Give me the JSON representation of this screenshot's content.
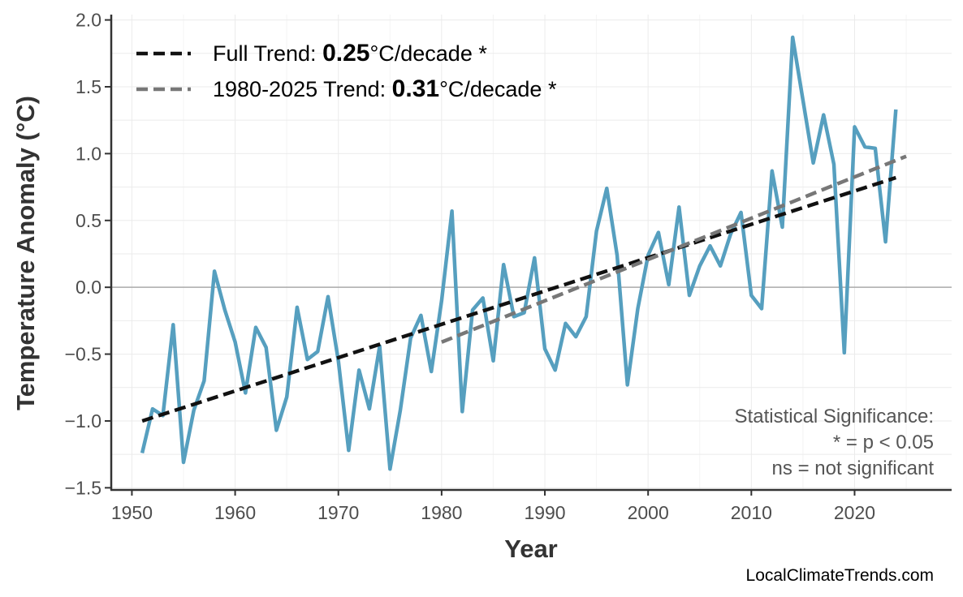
{
  "chart_data": {
    "type": "line",
    "xlabel": "Year",
    "ylabel": "Temperature Anomaly (°C)",
    "xlim": [
      1948,
      2029.4
    ],
    "ylim": [
      -1.51,
      2.04
    ],
    "xticks": [
      1950,
      1960,
      1970,
      1980,
      1990,
      2000,
      2010,
      2020
    ],
    "yticks": [
      -1.5,
      -1.0,
      -0.5,
      0.0,
      0.5,
      1.0,
      1.5,
      2.0
    ],
    "ytick_labels": [
      "−1.5",
      "−1.0",
      "−0.5",
      "0.0",
      "0.5",
      "1.0",
      "1.5",
      "2.0"
    ],
    "grid": true,
    "zero_line": true,
    "legend_position": "top-left",
    "series": {
      "color": "#569fbf",
      "x": [
        1951,
        1952,
        1953,
        1954,
        1955,
        1956,
        1957,
        1958,
        1959,
        1960,
        1961,
        1962,
        1963,
        1964,
        1965,
        1966,
        1967,
        1968,
        1969,
        1970,
        1971,
        1972,
        1973,
        1974,
        1975,
        1976,
        1977,
        1978,
        1979,
        1980,
        1981,
        1982,
        1983,
        1984,
        1985,
        1986,
        1987,
        1988,
        1989,
        1990,
        1991,
        1992,
        1993,
        1994,
        1995,
        1996,
        1997,
        1998,
        1999,
        2000,
        2001,
        2002,
        2003,
        2004,
        2005,
        2006,
        2007,
        2008,
        2009,
        2010,
        2011,
        2012,
        2013,
        2014,
        2015,
        2016,
        2017,
        2018,
        2019,
        2020,
        2021,
        2022,
        2023,
        2024
      ],
      "y": [
        -1.24,
        -0.91,
        -0.96,
        -0.28,
        -1.31,
        -0.92,
        -0.7,
        0.12,
        -0.17,
        -0.41,
        -0.79,
        -0.3,
        -0.45,
        -1.07,
        -0.82,
        -0.15,
        -0.54,
        -0.48,
        -0.07,
        -0.55,
        -1.22,
        -0.62,
        -0.91,
        -0.44,
        -1.36,
        -0.92,
        -0.38,
        -0.21,
        -0.63,
        -0.1,
        0.57,
        -0.93,
        -0.17,
        -0.08,
        -0.55,
        0.17,
        -0.22,
        -0.19,
        0.22,
        -0.46,
        -0.62,
        -0.27,
        -0.37,
        -0.22,
        0.42,
        0.74,
        0.24,
        -0.73,
        -0.16,
        0.24,
        0.41,
        0.02,
        0.6,
        -0.06,
        0.16,
        0.31,
        0.16,
        0.4,
        0.56,
        -0.06,
        -0.16,
        0.87,
        0.45,
        1.87,
        1.4,
        0.93,
        1.29,
        0.92,
        -0.49,
        1.2,
        1.05,
        1.04,
        0.34,
        1.33
      ]
    },
    "trends": [
      {
        "prefix": "Full Trend: ",
        "value": "0.25",
        "suffix": "°C/decade *",
        "color": "#111111",
        "x": [
          1951,
          2024
        ],
        "y": [
          -1.0,
          0.82
        ]
      },
      {
        "prefix": "1980-2025 Trend: ",
        "value": "0.31",
        "suffix": "°C/decade *",
        "color": "#777777",
        "x": [
          1980,
          2025
        ],
        "y": [
          -0.41,
          0.98
        ]
      }
    ],
    "annotation": [
      "Statistical Significance:",
      "* = p < 0.05",
      "ns = not significant"
    ],
    "watermark": "LocalClimateTrends.com"
  }
}
